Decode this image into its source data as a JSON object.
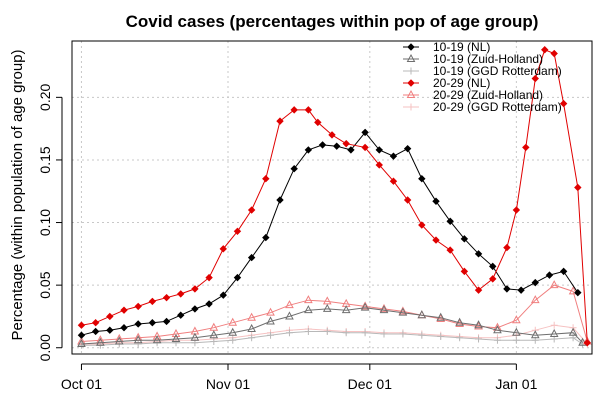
{
  "chart_data": {
    "type": "line",
    "title": "Covid cases (percentages within pop of age group)",
    "xlabel": "",
    "ylabel": "Percentage (within population of age group)",
    "x_ticks": [
      "Oct 01",
      "Nov 01",
      "Dec 01",
      "Jan 01"
    ],
    "x_tick_days": [
      0,
      31,
      61,
      92
    ],
    "x_range_days": [
      -2,
      108
    ],
    "y_ticks": [
      "0.00",
      "0.05",
      "0.10",
      "0.15",
      "0.20"
    ],
    "y_tick_values": [
      0.0,
      0.05,
      0.1,
      0.15,
      0.2
    ],
    "ylim": [
      -0.005,
      0.245
    ],
    "grid": true,
    "legend_position": "top-right",
    "series": [
      {
        "name": "10-19 (NL)",
        "color": "#000000",
        "marker": "diamond-filled",
        "x": [
          0,
          3,
          6,
          9,
          12,
          15,
          18,
          21,
          24,
          27,
          30,
          33,
          36,
          39,
          42,
          45,
          48,
          51,
          54,
          57,
          60,
          63,
          66,
          69,
          72,
          75,
          78,
          81,
          84,
          87,
          90,
          93,
          96,
          99,
          102,
          105
        ],
        "y": [
          0.01,
          0.013,
          0.014,
          0.016,
          0.019,
          0.02,
          0.021,
          0.026,
          0.031,
          0.035,
          0.042,
          0.056,
          0.072,
          0.088,
          0.118,
          0.143,
          0.158,
          0.162,
          0.161,
          0.158,
          0.172,
          0.158,
          0.153,
          0.159,
          0.135,
          0.117,
          0.101,
          0.087,
          0.075,
          0.065,
          0.047,
          0.046,
          0.052,
          0.058,
          0.061,
          0.044
        ]
      },
      {
        "name": "10-19 (Zuid-Holland)",
        "color": "#6e6e6e",
        "marker": "triangle-open",
        "x": [
          0,
          4,
          8,
          12,
          16,
          20,
          24,
          28,
          32,
          36,
          40,
          44,
          48,
          52,
          56,
          60,
          64,
          68,
          72,
          76,
          80,
          84,
          88,
          92,
          96,
          100,
          104,
          106
        ],
        "y": [
          0.003,
          0.004,
          0.005,
          0.006,
          0.006,
          0.007,
          0.008,
          0.01,
          0.012,
          0.015,
          0.021,
          0.025,
          0.03,
          0.031,
          0.03,
          0.032,
          0.03,
          0.028,
          0.026,
          0.024,
          0.02,
          0.018,
          0.014,
          0.012,
          0.01,
          0.011,
          0.012,
          0.004
        ]
      },
      {
        "name": "10-19 (GGD Rotterdam)",
        "color": "#b8b8b8",
        "marker": "plus",
        "x": [
          0,
          4,
          8,
          12,
          16,
          20,
          24,
          28,
          32,
          36,
          40,
          44,
          48,
          52,
          56,
          60,
          64,
          68,
          72,
          76,
          80,
          84,
          88,
          92,
          96,
          100,
          104,
          106
        ],
        "y": [
          0.002,
          0.002,
          0.003,
          0.003,
          0.004,
          0.004,
          0.004,
          0.005,
          0.006,
          0.008,
          0.01,
          0.012,
          0.013,
          0.013,
          0.012,
          0.012,
          0.011,
          0.011,
          0.01,
          0.009,
          0.008,
          0.007,
          0.006,
          0.006,
          0.006,
          0.007,
          0.008,
          0.003
        ]
      },
      {
        "name": "20-29 (NL)",
        "color": "#e00000",
        "marker": "diamond-filled",
        "x": [
          0,
          3,
          6,
          9,
          12,
          15,
          18,
          21,
          24,
          27,
          30,
          33,
          36,
          39,
          42,
          45,
          48,
          50,
          53,
          56,
          60,
          63,
          66,
          69,
          72,
          75,
          78,
          81,
          84,
          87,
          90,
          92,
          94,
          96,
          98,
          100,
          102,
          105,
          107
        ],
        "y": [
          0.018,
          0.02,
          0.025,
          0.03,
          0.033,
          0.037,
          0.04,
          0.043,
          0.047,
          0.056,
          0.079,
          0.093,
          0.11,
          0.135,
          0.181,
          0.19,
          0.19,
          0.18,
          0.17,
          0.163,
          0.16,
          0.146,
          0.133,
          0.118,
          0.098,
          0.086,
          0.078,
          0.061,
          0.046,
          0.055,
          0.08,
          0.11,
          0.16,
          0.215,
          0.238,
          0.235,
          0.195,
          0.128,
          0.004
        ]
      },
      {
        "name": "20-29 (Zuid-Holland)",
        "color": "#f07f7f",
        "marker": "triangle-open",
        "x": [
          0,
          4,
          8,
          12,
          16,
          20,
          24,
          28,
          32,
          36,
          40,
          44,
          48,
          52,
          56,
          60,
          64,
          68,
          72,
          76,
          80,
          84,
          88,
          92,
          96,
          100,
          104,
          107
        ],
        "y": [
          0.005,
          0.006,
          0.007,
          0.008,
          0.009,
          0.011,
          0.013,
          0.016,
          0.02,
          0.024,
          0.028,
          0.034,
          0.038,
          0.037,
          0.035,
          0.033,
          0.031,
          0.029,
          0.026,
          0.023,
          0.019,
          0.017,
          0.016,
          0.022,
          0.038,
          0.05,
          0.045,
          0.005
        ]
      },
      {
        "name": "20-29 (GGD Rotterdam)",
        "color": "#f6c2c2",
        "marker": "plus",
        "x": [
          0,
          4,
          8,
          12,
          16,
          20,
          24,
          28,
          32,
          36,
          40,
          44,
          48,
          52,
          56,
          60,
          64,
          68,
          72,
          76,
          80,
          84,
          88,
          92,
          96,
          100,
          104,
          107
        ],
        "y": [
          0.003,
          0.003,
          0.004,
          0.004,
          0.005,
          0.006,
          0.006,
          0.007,
          0.008,
          0.01,
          0.012,
          0.014,
          0.015,
          0.014,
          0.013,
          0.013,
          0.012,
          0.012,
          0.011,
          0.01,
          0.009,
          0.008,
          0.008,
          0.01,
          0.014,
          0.018,
          0.016,
          0.003
        ]
      }
    ]
  }
}
